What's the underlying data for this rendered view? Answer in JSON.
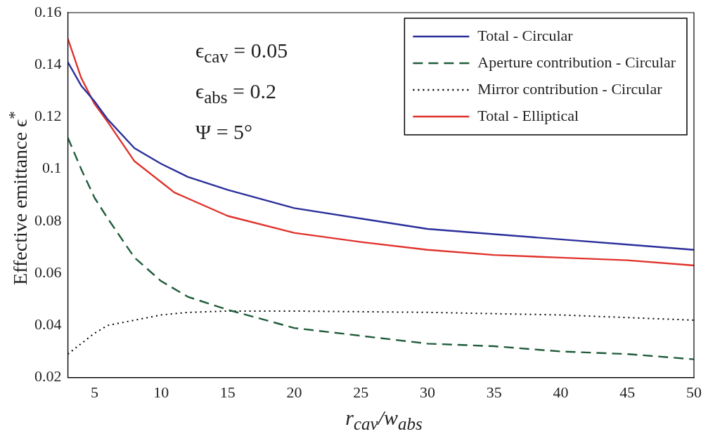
{
  "chart_data": {
    "type": "line",
    "xlabel": "r$_{cav}$/w$_{abs}$",
    "ylabel": "Effective emittance ϵ$^{*}$",
    "annotations": [
      "ϵ$_{cav}$ = 0.05",
      "ϵ$_{abs}$ = 0.2",
      "Ψ = 5°"
    ],
    "xlim": [
      3,
      50
    ],
    "xticks": [
      5,
      10,
      15,
      20,
      25,
      30,
      35,
      40,
      45,
      50
    ],
    "ylim": [
      0.02,
      0.16
    ],
    "yticks": [
      0.02,
      0.04,
      0.06,
      0.08,
      {
        "value": 0.1,
        "label": "0.1"
      },
      0.12,
      0.14,
      0.16
    ],
    "grid": false,
    "legend": "top right",
    "marker": "none",
    "series": [
      {
        "name": "Total - Circular",
        "color": "#2b2f9a",
        "line_style": "solid",
        "x": [
          3,
          4,
          5,
          6,
          8,
          10,
          12,
          15,
          20,
          25,
          30,
          35,
          40,
          45,
          50
        ],
        "values": [
          0.141,
          0.132,
          0.126,
          0.119,
          0.108,
          0.102,
          0.097,
          0.092,
          0.085,
          0.081,
          0.077,
          0.075,
          0.073,
          0.071,
          0.069
        ]
      },
      {
        "name": "Aperture contribution - Circular",
        "color": "#1f5c3a",
        "line_style": "dashed",
        "x": [
          3,
          4,
          5,
          6,
          8,
          10,
          12,
          15,
          20,
          25,
          30,
          35,
          40,
          45,
          50
        ],
        "values": [
          0.112,
          0.1,
          0.089,
          0.081,
          0.066,
          0.057,
          0.051,
          0.046,
          0.039,
          0.036,
          0.033,
          0.032,
          0.03,
          0.029,
          0.027
        ]
      },
      {
        "name": "Mirror contribution - Circular",
        "color": "#000000",
        "line_style": "dotted",
        "x": [
          3,
          4,
          5,
          6,
          8,
          10,
          12,
          15,
          20,
          30,
          40,
          50
        ],
        "values": [
          0.029,
          0.033,
          0.037,
          0.04,
          0.042,
          0.044,
          0.045,
          0.0455,
          0.0455,
          0.045,
          0.044,
          0.042
        ]
      },
      {
        "name": "Total - Elliptical",
        "color": "#e0322c",
        "line_style": "solid",
        "x": [
          3,
          4,
          5,
          6,
          8,
          10,
          11,
          15,
          20,
          25,
          30,
          35,
          40,
          45,
          50
        ],
        "values": [
          0.15,
          0.135,
          0.125,
          0.118,
          0.103,
          0.095,
          0.091,
          0.082,
          0.0755,
          0.072,
          0.069,
          0.067,
          0.066,
          0.065,
          0.063
        ]
      }
    ]
  }
}
